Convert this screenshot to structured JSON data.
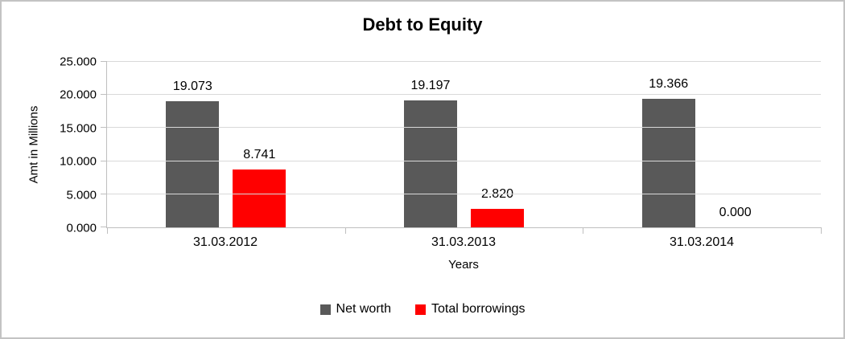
{
  "chart_data": {
    "type": "bar",
    "title": "Debt to Equity",
    "xlabel": "Years",
    "ylabel": "Amt  in Millions",
    "categories": [
      "31.03.2012",
      "31.03.2013",
      "31.03.2014"
    ],
    "series": [
      {
        "name": "Net worth",
        "color": "#595959",
        "values": [
          19.073,
          19.197,
          19.366
        ],
        "labels": [
          "19.073",
          "19.197",
          "19.366"
        ]
      },
      {
        "name": "Total borrowings",
        "color": "#ff0000",
        "values": [
          8.741,
          2.82,
          0.0
        ],
        "labels": [
          "8.741",
          "2.820",
          "0.000"
        ]
      }
    ],
    "ylim": [
      0,
      25
    ],
    "ytick_values": [
      0,
      5,
      10,
      15,
      20,
      25
    ],
    "ytick_labels": [
      "0.000",
      "5.000",
      "10.000",
      "15.000",
      "20.000",
      "25.000"
    ],
    "grid": true,
    "legend_position": "bottom"
  }
}
